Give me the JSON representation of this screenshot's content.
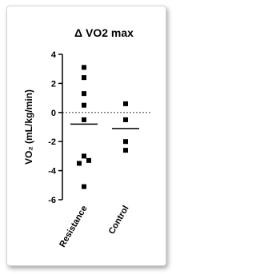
{
  "chart_data": {
    "type": "strip",
    "title": "Δ VO2 max",
    "y_label": "VO₂ (mL/kg/min)",
    "categories": [
      "Resistance",
      "Control"
    ],
    "values": [
      [
        3.1,
        2.4,
        1.3,
        0.5,
        -0.5,
        -3.0,
        -3.3,
        -3.5,
        -5.1
      ],
      [
        0.6,
        -0.5,
        -2.0,
        -2.6
      ]
    ],
    "means": [
      -0.8,
      -1.1
    ],
    "reference_line": 0,
    "color": "#000000",
    "ylim": [
      -6,
      4
    ],
    "yticks": [
      -6,
      -4,
      -2,
      0,
      2,
      4
    ]
  }
}
